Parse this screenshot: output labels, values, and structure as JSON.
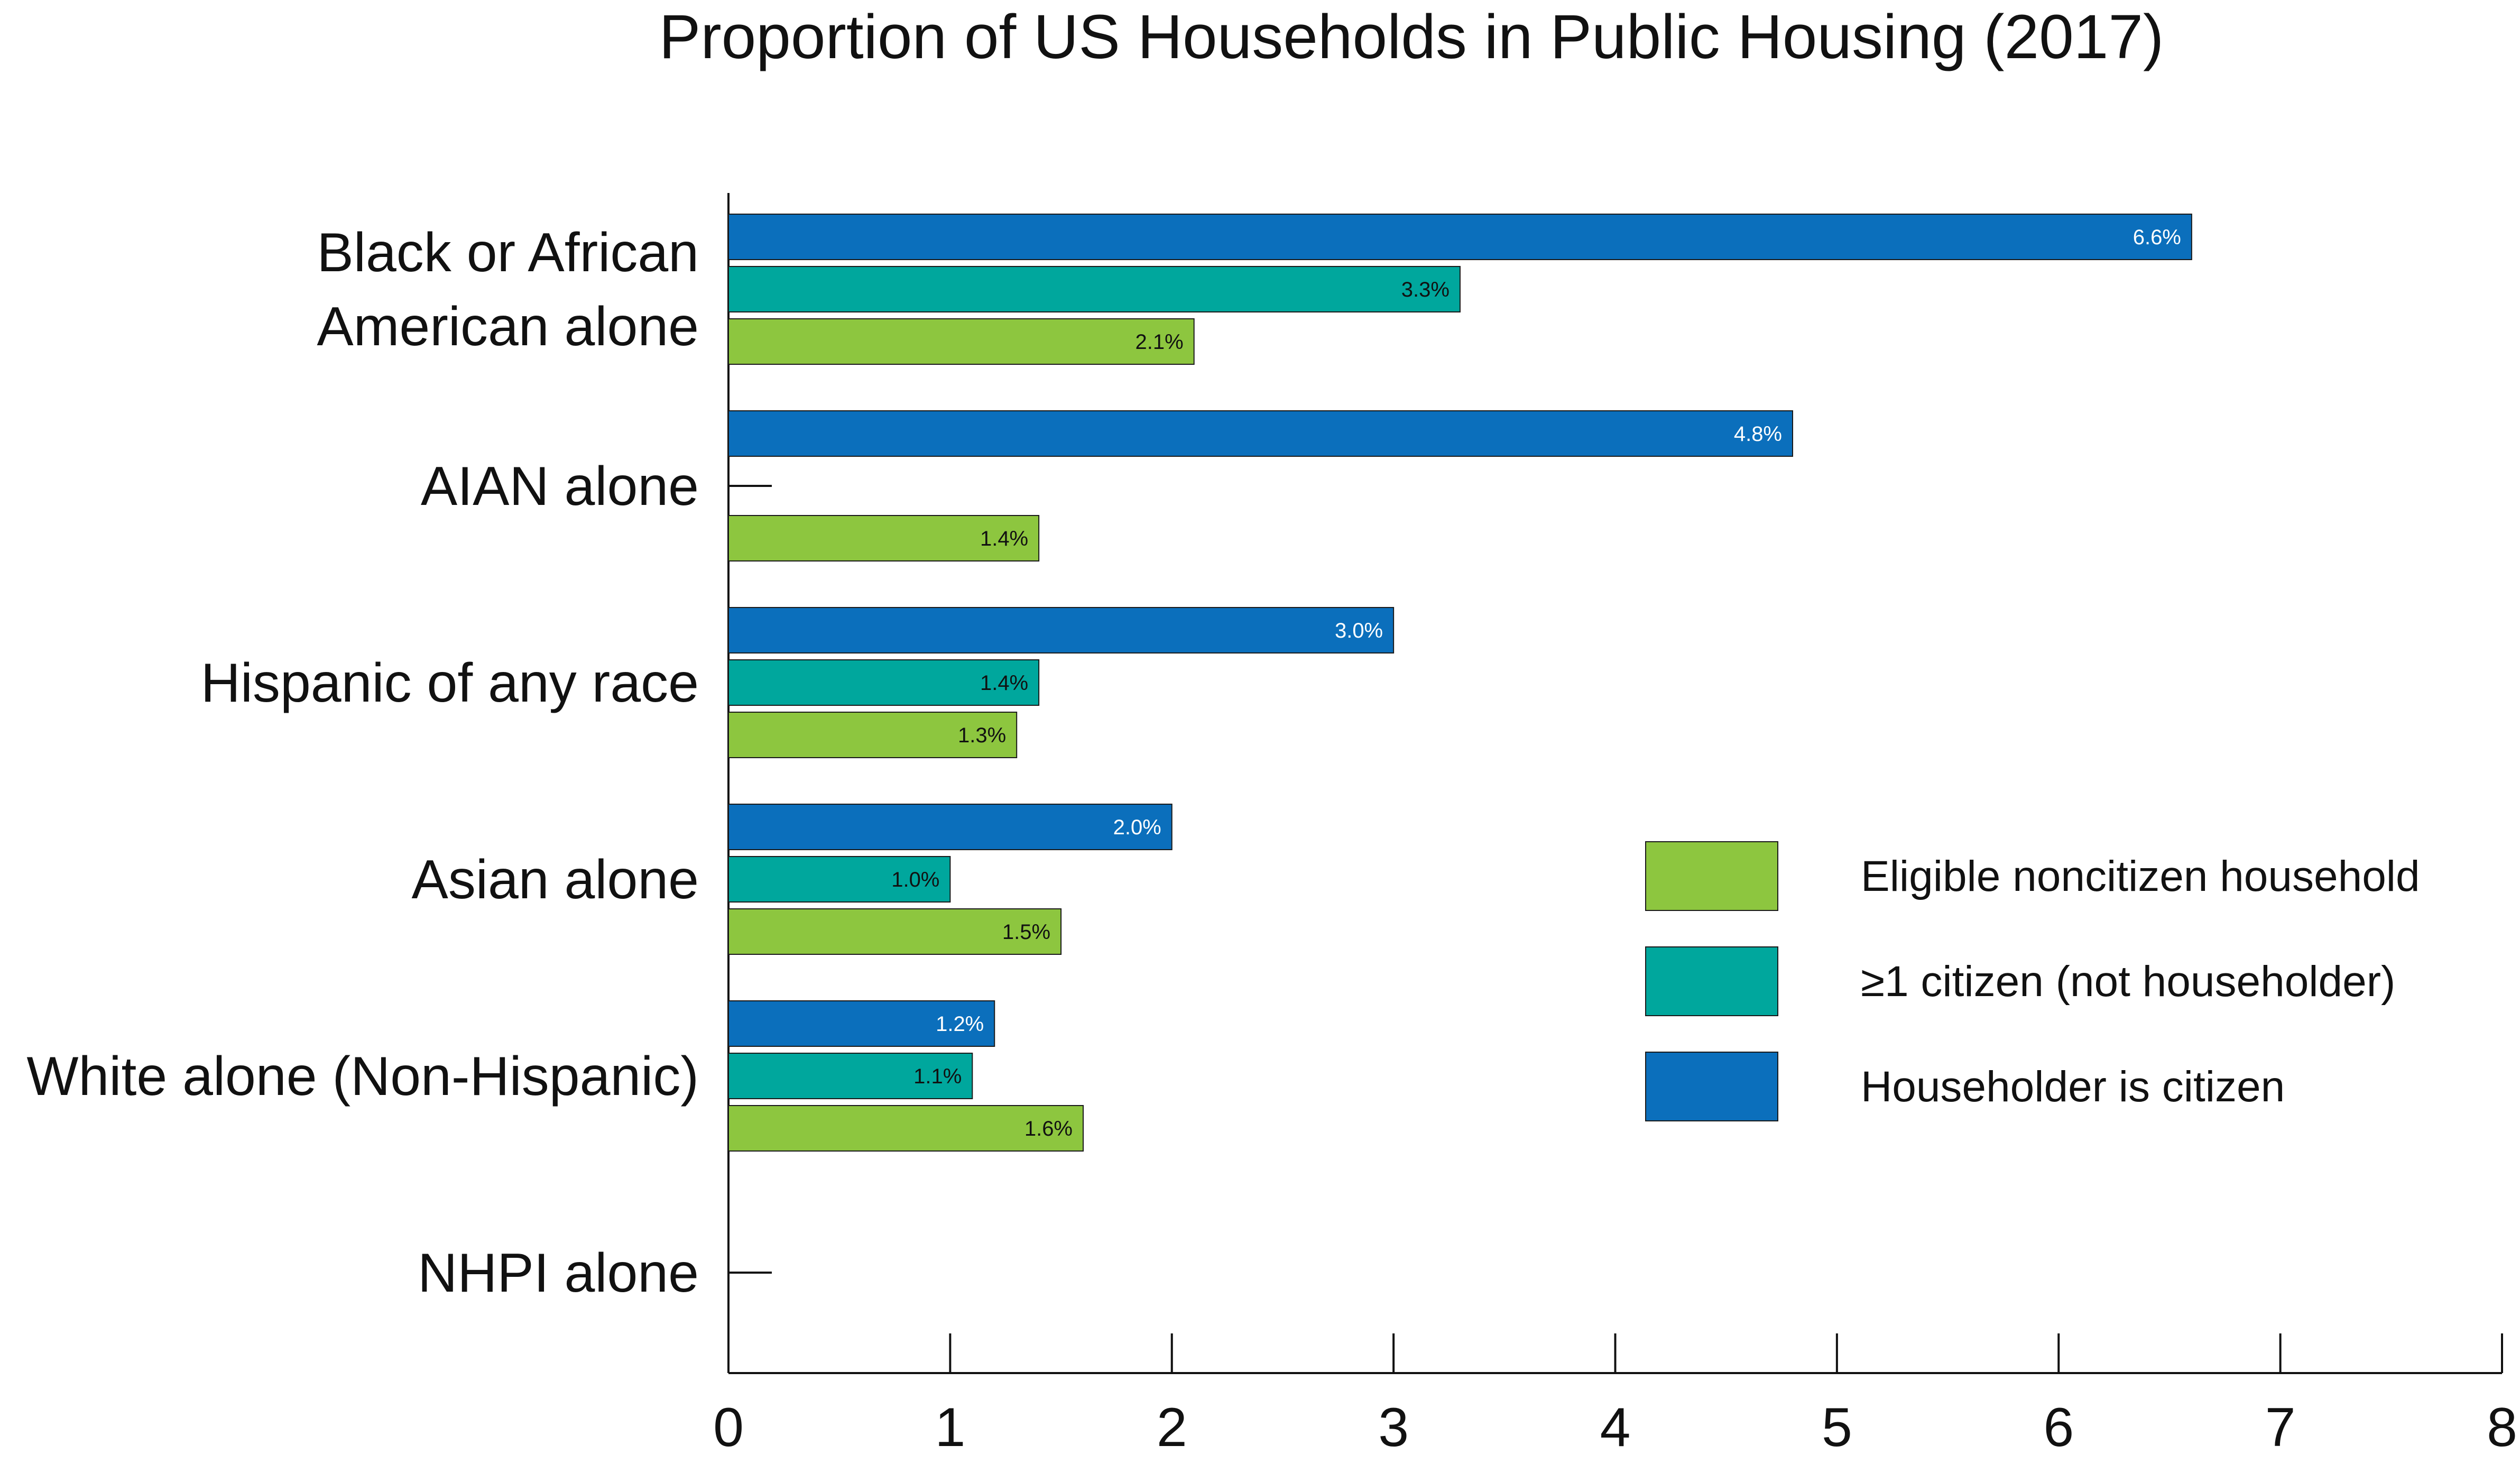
{
  "chart_data": {
    "type": "bar",
    "orientation": "horizontal",
    "title": "Proportion of US Households in Public Housing (2017)",
    "xlabel": "",
    "ylabel": "",
    "xlim": [
      0,
      8
    ],
    "x_ticks": [
      "0",
      "1",
      "2",
      "3",
      "4",
      "5",
      "6",
      "7",
      "8"
    ],
    "grid": false,
    "legend_position": "right",
    "categories": [
      [
        "Black or African",
        "American alone"
      ],
      [
        "AIAN alone"
      ],
      [
        "Hispanic of any race"
      ],
      [
        "Asian alone"
      ],
      [
        "White alone (Non-Hispanic)"
      ],
      [
        "NHPI alone"
      ]
    ],
    "series": [
      {
        "name": "Householder is citizen",
        "color": "#0b6fbc",
        "label_color": "#ffffff",
        "values": [
          6.6,
          4.8,
          3.0,
          2.0,
          1.2,
          null
        ],
        "labels": [
          "6.6%",
          "4.8%",
          "3.0%",
          "2.0%",
          "1.2%",
          null
        ]
      },
      {
        "name": "≥1 citizen (not householder)",
        "color": "#00a79d",
        "label_color": "#111111",
        "values": [
          3.3,
          null,
          1.4,
          1.0,
          1.1,
          null
        ],
        "labels": [
          "3.3%",
          null,
          "1.4%",
          "1.0%",
          "1.1%",
          null
        ]
      },
      {
        "name": "Eligible noncitizen household",
        "color": "#8dc63f",
        "label_color": "#111111",
        "values": [
          2.1,
          1.4,
          1.3,
          1.5,
          1.6,
          null
        ],
        "labels": [
          "2.1%",
          "1.4%",
          "1.3%",
          "1.5%",
          "1.6%",
          null
        ]
      }
    ],
    "legend_order": [
      "Eligible noncitizen household",
      "≥1 citizen (not householder)",
      "Householder is citizen"
    ]
  }
}
